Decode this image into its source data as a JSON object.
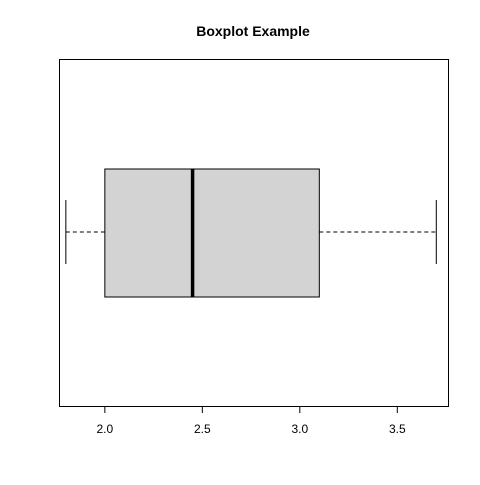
{
  "chart_data": {
    "type": "boxplot",
    "title": "Boxplot Example",
    "orientation": "horizontal",
    "xlabel": "",
    "ylabel": "",
    "xlim": [
      1.77,
      3.76
    ],
    "xticks": [
      2.0,
      2.5,
      3.0,
      3.5
    ],
    "xtick_labels": [
      "2.0",
      "2.5",
      "3.0",
      "3.5"
    ],
    "grid": false,
    "box": {
      "min": 1.8,
      "q1": 2.0,
      "median": 2.45,
      "q3": 3.1,
      "max": 3.7
    },
    "box_fill_color": "#d3d3d3",
    "line_color": "#000000"
  }
}
